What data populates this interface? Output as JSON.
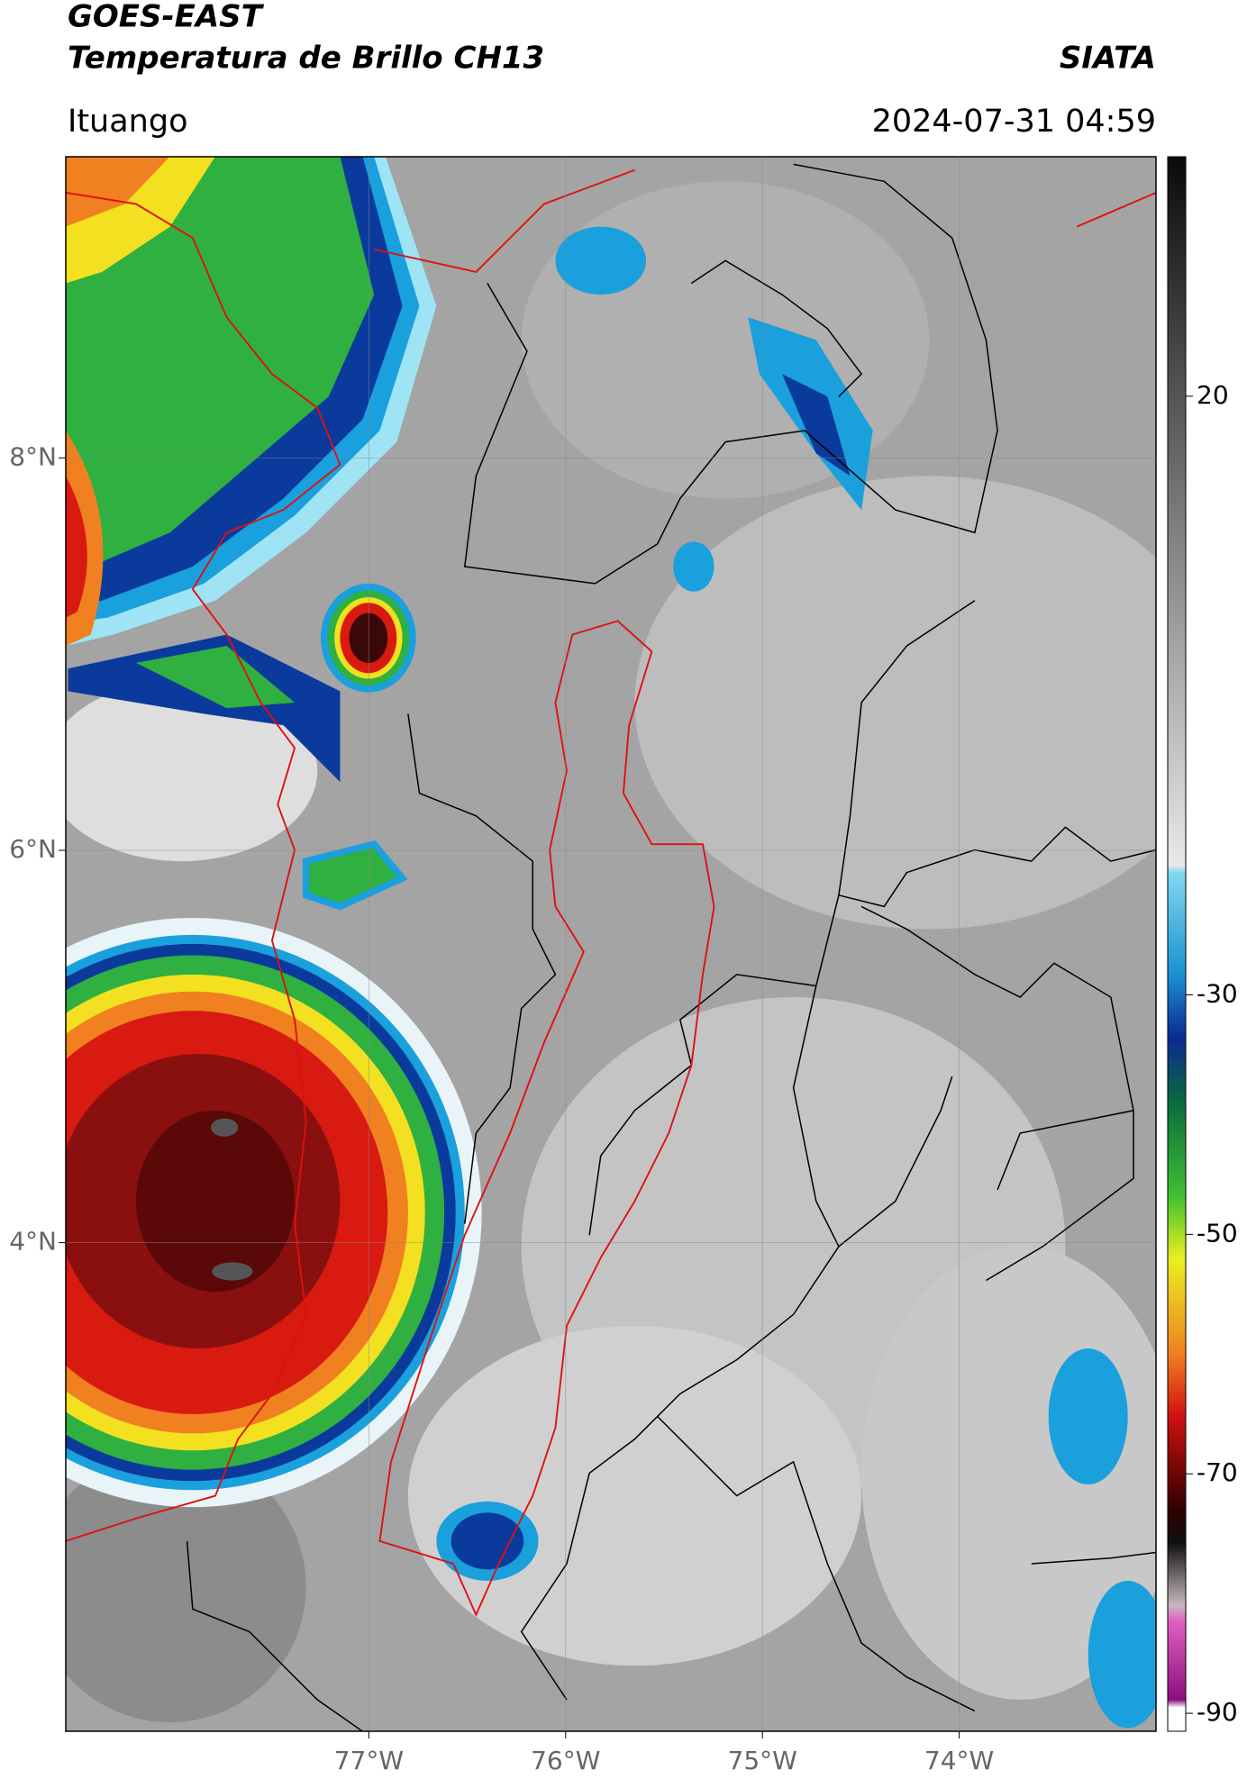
{
  "header": {
    "line1": "GOES-EAST",
    "line2": "Temperatura de Brillo CH13",
    "source": "SIATA",
    "location": "Ituango",
    "datetime": "2024-07-31 04:59"
  },
  "map": {
    "xlim": [
      -78.54,
      -73.0
    ],
    "ylim": [
      1.51,
      9.535
    ],
    "xticks": [
      {
        "value": -77,
        "label": "77°W"
      },
      {
        "value": -76,
        "label": "76°W"
      },
      {
        "value": -75,
        "label": "75°W"
      },
      {
        "value": -74,
        "label": "74°W"
      }
    ],
    "yticks": [
      {
        "value": 8,
        "label": "8°N"
      },
      {
        "value": 6,
        "label": "6°N"
      },
      {
        "value": 4,
        "label": "4°N"
      }
    ],
    "grid": true
  },
  "colorbar": {
    "lim": [
      -91.5,
      40
    ],
    "ticks": [
      20,
      -30,
      -50,
      -70,
      -90
    ]
  }
}
